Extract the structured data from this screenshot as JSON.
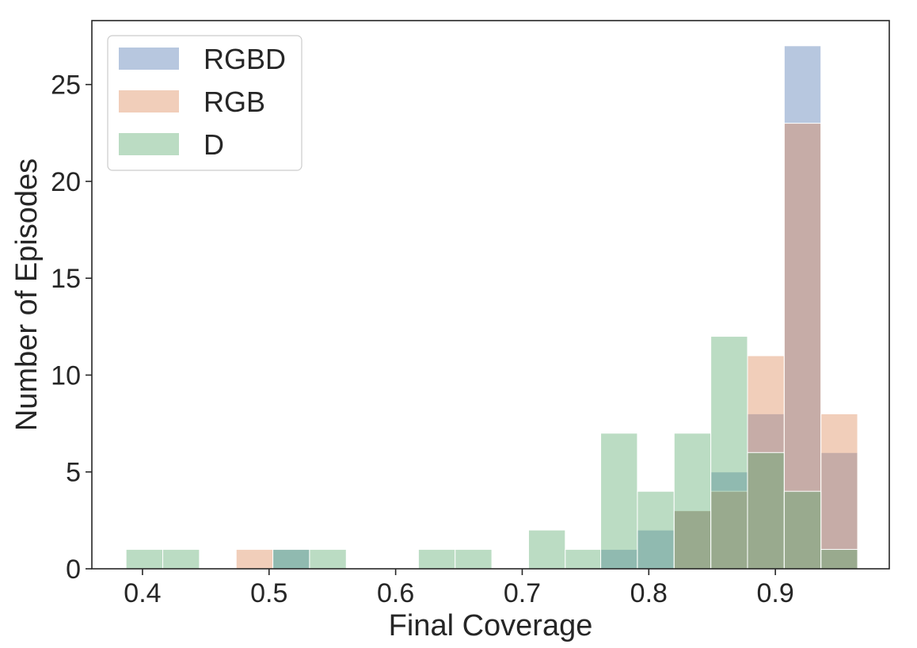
{
  "chart_data": {
    "type": "bar",
    "subtype": "overlaid-histogram",
    "title": "",
    "xlabel": "Final Coverage",
    "ylabel": "Number of Episodes",
    "xlim": [
      0.36,
      0.99
    ],
    "ylim": [
      0,
      28.3
    ],
    "xticks": [
      "0.4",
      "0.5",
      "0.6",
      "0.7",
      "0.8",
      "0.9"
    ],
    "yticks": [
      "0",
      "5",
      "10",
      "15",
      "20",
      "25"
    ],
    "grid": false,
    "legend_position": "top-left",
    "bar_opacity": 0.4,
    "series": [
      {
        "name": "RGBD",
        "color": "#4c72b0",
        "bins": [
          {
            "x0": 0.503,
            "x1": 0.532,
            "value": 1
          },
          {
            "x0": 0.762,
            "x1": 0.791,
            "value": 1
          },
          {
            "x0": 0.791,
            "x1": 0.82,
            "value": 2
          },
          {
            "x0": 0.82,
            "x1": 0.849,
            "value": 3
          },
          {
            "x0": 0.849,
            "x1": 0.878,
            "value": 5
          },
          {
            "x0": 0.878,
            "x1": 0.907,
            "value": 8
          },
          {
            "x0": 0.907,
            "x1": 0.936,
            "value": 27
          },
          {
            "x0": 0.936,
            "x1": 0.965,
            "value": 6
          }
        ]
      },
      {
        "name": "RGB",
        "color": "#dd8452",
        "bins": [
          {
            "x0": 0.474,
            "x1": 0.503,
            "value": 1
          },
          {
            "x0": 0.82,
            "x1": 0.849,
            "value": 3
          },
          {
            "x0": 0.849,
            "x1": 0.878,
            "value": 4
          },
          {
            "x0": 0.878,
            "x1": 0.907,
            "value": 11
          },
          {
            "x0": 0.907,
            "x1": 0.936,
            "value": 23
          },
          {
            "x0": 0.936,
            "x1": 0.965,
            "value": 8
          }
        ]
      },
      {
        "name": "D",
        "color": "#55a868",
        "bins": [
          {
            "x0": 0.387,
            "x1": 0.416,
            "value": 1
          },
          {
            "x0": 0.416,
            "x1": 0.445,
            "value": 1
          },
          {
            "x0": 0.503,
            "x1": 0.532,
            "value": 1
          },
          {
            "x0": 0.532,
            "x1": 0.561,
            "value": 1
          },
          {
            "x0": 0.618,
            "x1": 0.647,
            "value": 1
          },
          {
            "x0": 0.647,
            "x1": 0.676,
            "value": 1
          },
          {
            "x0": 0.705,
            "x1": 0.734,
            "value": 2
          },
          {
            "x0": 0.734,
            "x1": 0.762,
            "value": 1
          },
          {
            "x0": 0.762,
            "x1": 0.791,
            "value": 7
          },
          {
            "x0": 0.791,
            "x1": 0.82,
            "value": 4
          },
          {
            "x0": 0.82,
            "x1": 0.849,
            "value": 7
          },
          {
            "x0": 0.849,
            "x1": 0.878,
            "value": 12
          },
          {
            "x0": 0.878,
            "x1": 0.907,
            "value": 6
          },
          {
            "x0": 0.907,
            "x1": 0.936,
            "value": 4
          },
          {
            "x0": 0.936,
            "x1": 0.965,
            "value": 1
          }
        ]
      }
    ]
  }
}
